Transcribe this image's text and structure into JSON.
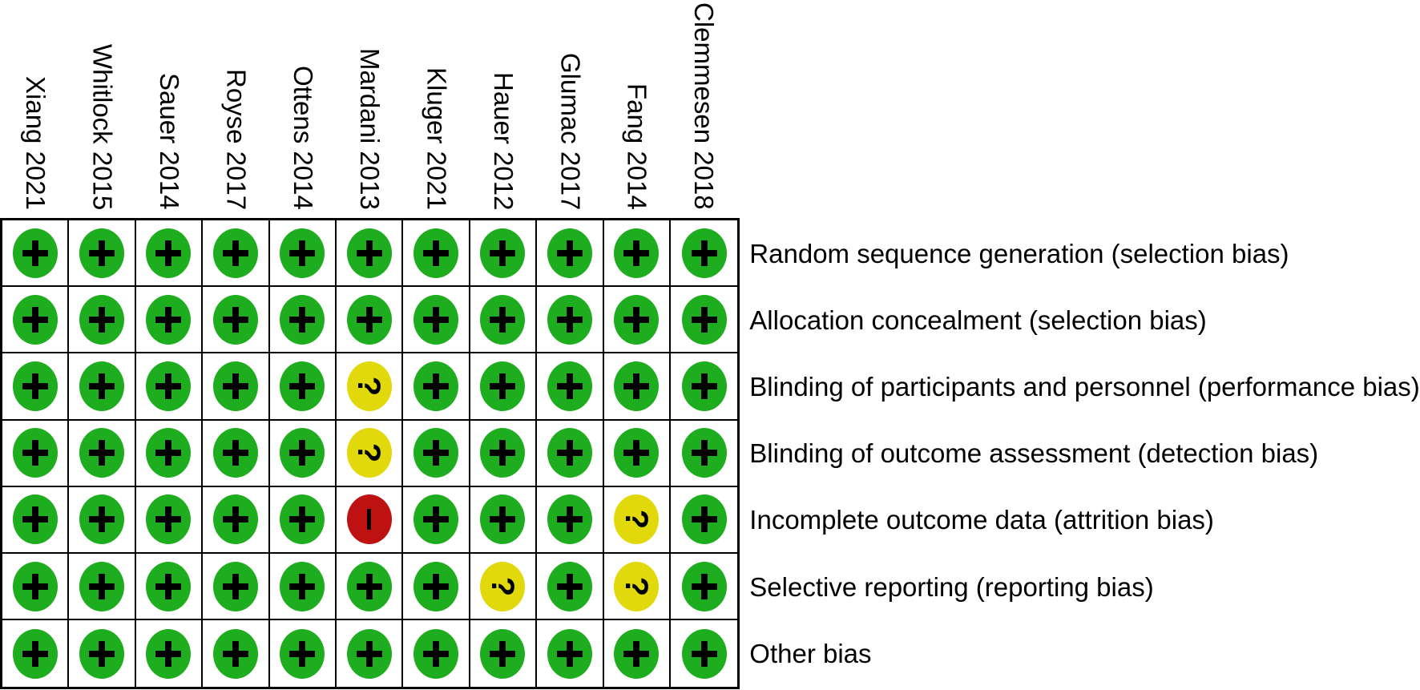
{
  "chart_data": {
    "type": "heatmap",
    "subtype": "risk-of-bias-summary",
    "columns": [
      "Xiang 2021",
      "Whitlock 2015",
      "Sauer 2014",
      "Royse 2017",
      "Ottens 2014",
      "Mardani 2013",
      "Kluger 2021",
      "Hauer 2012",
      "Glumac 2017",
      "Fang 2014",
      "Clemmesen 2018"
    ],
    "rows": [
      "Random sequence generation (selection bias)",
      "Allocation concealment (selection bias)",
      "Blinding of participants and personnel (performance bias)",
      "Blinding of outcome assessment (detection bias)",
      "Incomplete outcome data (attrition bias)",
      "Selective reporting (reporting bias)",
      "Other bias"
    ],
    "values": [
      [
        "+",
        "+",
        "+",
        "+",
        "+",
        "+",
        "+",
        "+",
        "+",
        "+",
        "+"
      ],
      [
        "+",
        "+",
        "+",
        "+",
        "+",
        "+",
        "+",
        "+",
        "+",
        "+",
        "+"
      ],
      [
        "+",
        "+",
        "+",
        "+",
        "+",
        "?",
        "+",
        "+",
        "+",
        "+",
        "+"
      ],
      [
        "+",
        "+",
        "+",
        "+",
        "+",
        "?",
        "+",
        "+",
        "+",
        "+",
        "+"
      ],
      [
        "+",
        "+",
        "+",
        "+",
        "+",
        "-",
        "+",
        "+",
        "+",
        "?",
        "+"
      ],
      [
        "+",
        "+",
        "+",
        "+",
        "+",
        "+",
        "+",
        "?",
        "+",
        "?",
        "+"
      ],
      [
        "+",
        "+",
        "+",
        "+",
        "+",
        "+",
        "+",
        "+",
        "+",
        "+",
        "+"
      ]
    ],
    "legend": {
      "+": {
        "shape": "circle-with-plus",
        "color": "#1ead1e"
      },
      "?": {
        "shape": "circle-with-question-mark",
        "color": "#e1d90b"
      },
      "-": {
        "shape": "circle-with-minus",
        "color": "#be1212"
      }
    },
    "colors": {
      "symbol": "#000000",
      "grid": "#000000",
      "background": "#ffffff"
    },
    "layout": {
      "column_labels_position": "top",
      "column_labels_rotation_deg": 90,
      "row_labels_position": "right",
      "grid": true
    }
  }
}
